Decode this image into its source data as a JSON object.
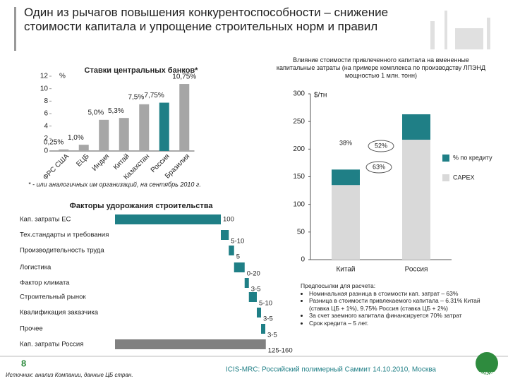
{
  "title": "Один из рычагов повышения конкурентоспособности – снижение стоимости капитала и упрощение строительных норм и правил",
  "chart_data": [
    {
      "type": "bar",
      "title": "Ставки центральных банков*",
      "y_unit": "%",
      "categories": [
        "ФРС США",
        "ЕЦБ",
        "Индия",
        "Китай",
        "Казахстан",
        "Россия",
        "Бразилия"
      ],
      "values": [
        0.25,
        1.0,
        5.0,
        5.3,
        7.5,
        7.75,
        10.75
      ],
      "value_labels": [
        "0,25%",
        "1,0%",
        "5,0%",
        "5,3%",
        "7,5%",
        "7,75%",
        "10,75%"
      ],
      "colors": [
        "#a6a6a6",
        "#a6a6a6",
        "#a6a6a6",
        "#a6a6a6",
        "#a6a6a6",
        "#1f7f86",
        "#a6a6a6"
      ],
      "ylim": [
        0,
        12
      ],
      "yticks": [
        0,
        2,
        4,
        6,
        8,
        10,
        12
      ],
      "footnote": "* - или аналогичных им организаций, на сентябрь 2010 г."
    },
    {
      "type": "stacked_bar",
      "title": "Влияние стоимости привлеченного капитала на вмененные капитальные затраты (на примере комплекса по производству ЛПЭНД мощностью 1 млн. тонн)",
      "y_unit": "$/тн",
      "categories": [
        "Китай",
        "Россия"
      ],
      "series": [
        {
          "name": "CAPEX",
          "color": "#d9d9d9",
          "values": [
            135,
            217
          ]
        },
        {
          "name": "% по кредиту",
          "color": "#1f7f86",
          "values": [
            28,
            46
          ]
        }
      ],
      "ylim": [
        0,
        300
      ],
      "yticks": [
        0,
        50,
        100,
        150,
        200,
        250,
        300
      ],
      "annotations": [
        "38%",
        "52%",
        "63%"
      ]
    },
    {
      "type": "waterfall",
      "title": "Факторы удорожания строительства",
      "categories": [
        "Кап. затраты ЕС",
        "Тех.стандарты и требования",
        "Производительность труда",
        "Логистика",
        "Фактор климата",
        "Строительный рынок",
        "Квалификация заказчика",
        "Прочее",
        "Кап. затраты Россия"
      ],
      "low": [
        100,
        5,
        5,
        0,
        3,
        5,
        3,
        3,
        125
      ],
      "high": [
        100,
        10,
        5,
        20,
        5,
        10,
        5,
        5,
        160
      ],
      "value_labels": [
        "100",
        "5-10",
        "5",
        "0-20",
        "3-5",
        "5-10",
        "3-5",
        "3-5",
        "125-160"
      ],
      "color": "#1f7f86",
      "total_color": "#808080"
    }
  ],
  "notes": {
    "title": "Предпосылки для расчета:",
    "items": [
      "Номинальная разница в стоимости кап. затрат – 63%",
      "Разница в стоимости привлекаемого капитала – 6.31% Китай (ставка ЦБ + 1%), 9.75% Россия (ставка ЦБ + 2%)",
      "За счет заемного капитала финансируется 70% затрат",
      "Срок кредита – 5 лет."
    ]
  },
  "page_number": "8",
  "source": "Источник: анализ Компании, данные ЦБ стран.",
  "footer": "ICIS-MRC: Российский полимерный Саммит 14.10.2010, Москва",
  "logo": "СИБУР"
}
